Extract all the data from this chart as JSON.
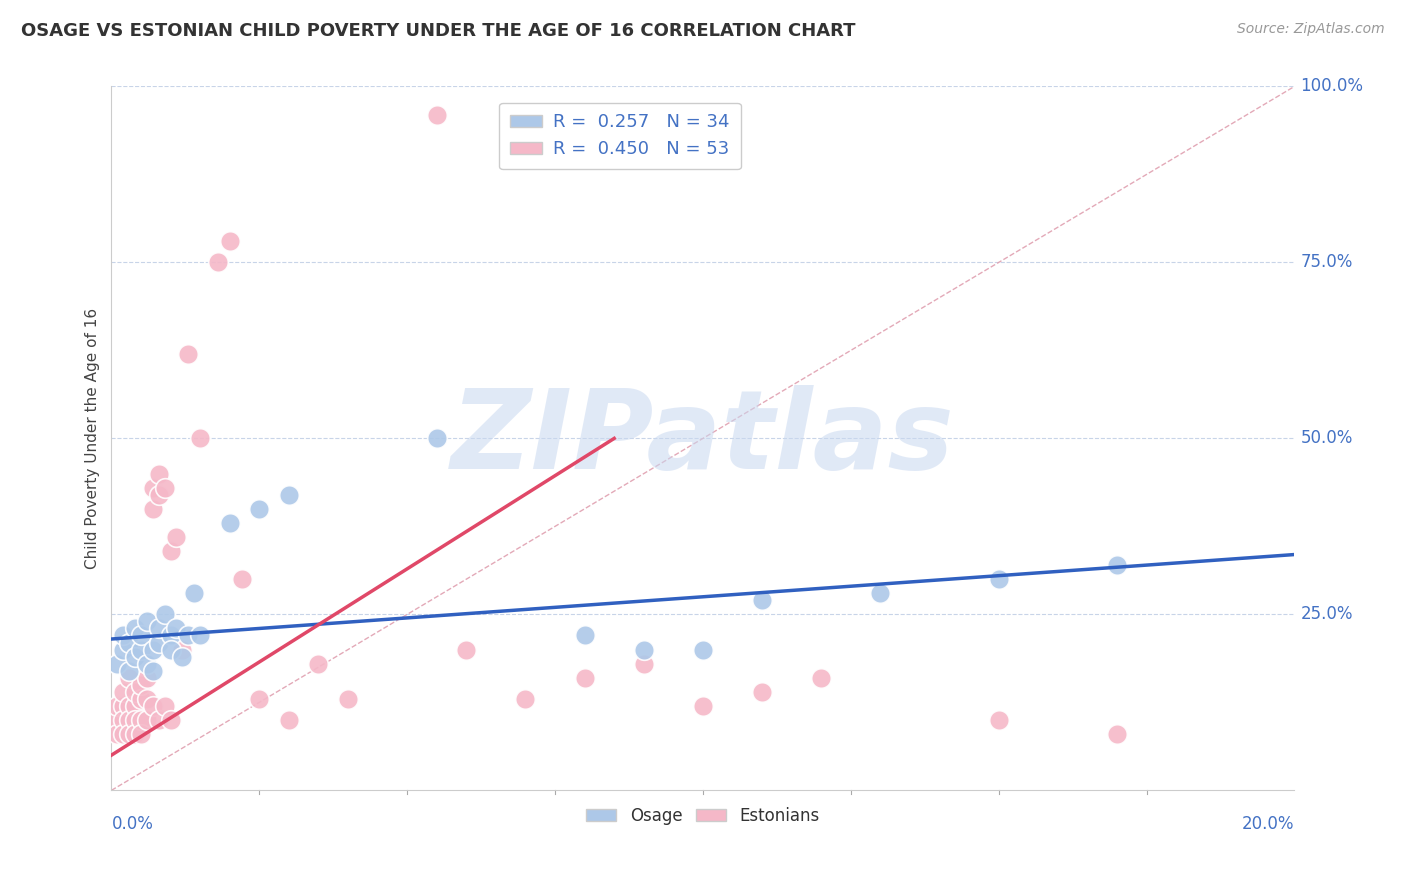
{
  "title": "OSAGE VS ESTONIAN CHILD POVERTY UNDER THE AGE OF 16 CORRELATION CHART",
  "source": "Source: ZipAtlas.com",
  "xmin": 0.0,
  "xmax": 0.2,
  "ymin": 0.0,
  "ymax": 1.0,
  "legend_blue_label": "R =  0.257   N = 34",
  "legend_pink_label": "R =  0.450   N = 53",
  "legend_bottom_blue": "Osage",
  "legend_bottom_pink": "Estonians",
  "watermark": "ZIPatlas",
  "blue_color": "#adc8e8",
  "pink_color": "#f5b8c8",
  "blue_dot_edge": "#8ab0d8",
  "pink_dot_edge": "#e898b0",
  "blue_line_color": "#3060c0",
  "pink_line_color": "#e04868",
  "ref_line_color": "#e0a0b0",
  "grid_color": "#c8d4e8",
  "axis_label_color": "#4472c4",
  "ylabel_label": "Child Poverty Under the Age of 16",
  "osage_x": [
    0.001,
    0.002,
    0.002,
    0.003,
    0.003,
    0.004,
    0.004,
    0.005,
    0.005,
    0.006,
    0.006,
    0.007,
    0.007,
    0.008,
    0.008,
    0.009,
    0.01,
    0.01,
    0.011,
    0.012,
    0.013,
    0.014,
    0.015,
    0.02,
    0.025,
    0.03,
    0.055,
    0.08,
    0.09,
    0.1,
    0.11,
    0.13,
    0.15,
    0.17
  ],
  "osage_y": [
    0.18,
    0.2,
    0.22,
    0.17,
    0.21,
    0.19,
    0.23,
    0.2,
    0.22,
    0.24,
    0.18,
    0.17,
    0.2,
    0.21,
    0.23,
    0.25,
    0.22,
    0.2,
    0.23,
    0.19,
    0.22,
    0.28,
    0.22,
    0.38,
    0.4,
    0.42,
    0.5,
    0.22,
    0.2,
    0.2,
    0.27,
    0.28,
    0.3,
    0.32
  ],
  "estonian_x": [
    0.001,
    0.001,
    0.001,
    0.002,
    0.002,
    0.002,
    0.002,
    0.003,
    0.003,
    0.003,
    0.003,
    0.004,
    0.004,
    0.004,
    0.004,
    0.005,
    0.005,
    0.005,
    0.005,
    0.006,
    0.006,
    0.006,
    0.007,
    0.007,
    0.007,
    0.008,
    0.008,
    0.008,
    0.009,
    0.009,
    0.01,
    0.01,
    0.011,
    0.012,
    0.013,
    0.015,
    0.018,
    0.02,
    0.022,
    0.025,
    0.03,
    0.035,
    0.04,
    0.055,
    0.06,
    0.07,
    0.08,
    0.09,
    0.1,
    0.11,
    0.12,
    0.15,
    0.17
  ],
  "estonian_y": [
    0.1,
    0.12,
    0.08,
    0.12,
    0.14,
    0.1,
    0.08,
    0.12,
    0.16,
    0.1,
    0.08,
    0.12,
    0.14,
    0.1,
    0.08,
    0.13,
    0.15,
    0.1,
    0.08,
    0.13,
    0.16,
    0.1,
    0.4,
    0.43,
    0.12,
    0.42,
    0.45,
    0.1,
    0.43,
    0.12,
    0.34,
    0.1,
    0.36,
    0.2,
    0.62,
    0.5,
    0.75,
    0.78,
    0.3,
    0.13,
    0.1,
    0.18,
    0.13,
    0.96,
    0.2,
    0.13,
    0.16,
    0.18,
    0.12,
    0.14,
    0.16,
    0.1,
    0.08
  ],
  "blue_trend_x0": 0.0,
  "blue_trend_y0": 0.215,
  "blue_trend_x1": 0.2,
  "blue_trend_y1": 0.335,
  "pink_trend_x0": 0.0,
  "pink_trend_y0": 0.05,
  "pink_trend_x1": 0.085,
  "pink_trend_y1": 0.5
}
